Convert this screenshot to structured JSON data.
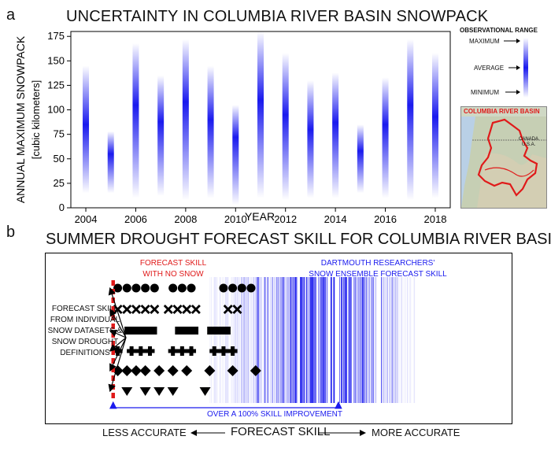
{
  "panel_a": {
    "letter": "a",
    "title": "UNCERTAINTY IN COLUMBIA RIVER BASIN SNOWPACK",
    "legend": {
      "title": "OBSERVATIONAL RANGE",
      "maximum": "MAXIMUM",
      "average": "AVERAGE",
      "minimum": "MINIMUM"
    },
    "map": {
      "title": "COLUMBIA RIVER BASIN",
      "canada": "CANADA",
      "usa": "U.S.A."
    }
  },
  "panel_b": {
    "letter": "b",
    "title": "SUMMER DROUGHT FORECAST SKILL FOR COLUMBIA RIVER BASIN",
    "no_snow_line1": "FORECAST SKILL",
    "no_snow_line2": "WITH NO SNOW",
    "ensemble_line1": "DARTMOUTH RESEARCHERS'",
    "ensemble_line2": "SNOW ENSEMBLE FORECAST SKILL",
    "datasets_lines": [
      "FORECAST SKILL",
      "FROM INDIVIDUAL",
      "SNOW DATASETS &",
      "SNOW DROUGHT",
      "DEFINITIONS"
    ],
    "improvement": "OVER A 100% SKILL IMPROVEMENT",
    "axis_left": "LESS ACCURATE",
    "axis_mid": "FORECAST SKILL",
    "axis_right": "MORE ACCURATE"
  },
  "colors": {
    "blue": "#1a1aee",
    "red": "#e01a1a",
    "black": "#000000"
  },
  "chart_data": [
    {
      "type": "bar",
      "title": "UNCERTAINTY IN COLUMBIA RIVER BASIN SNOWPACK",
      "xlabel": "YEAR",
      "ylabel": "ANNUAL MAXIMUM SNOWPACK",
      "ylabel2": "[cubic kilometers]",
      "xlim": [
        2003.4,
        2018.6
      ],
      "ylim": [
        0,
        180
      ],
      "yticks": [
        0,
        25,
        50,
        75,
        100,
        125,
        150,
        175
      ],
      "xticks": [
        2004,
        2006,
        2008,
        2010,
        2012,
        2014,
        2016,
        2018
      ],
      "series": [
        {
          "name": "OBSERVATIONAL RANGE",
          "x": [
            2004,
            2005,
            2006,
            2007,
            2008,
            2009,
            2010,
            2011,
            2012,
            2013,
            2014,
            2015,
            2016,
            2017,
            2018
          ],
          "min": [
            15,
            15,
            10,
            12,
            8,
            10,
            3,
            10,
            8,
            10,
            10,
            15,
            10,
            8,
            10
          ],
          "avg": [
            85,
            55,
            105,
            88,
            108,
            90,
            72,
            110,
            95,
            80,
            87,
            58,
            85,
            105,
            93
          ],
          "max": [
            145,
            78,
            168,
            135,
            172,
            145,
            105,
            180,
            158,
            130,
            138,
            85,
            133,
            172,
            158
          ]
        }
      ]
    },
    {
      "type": "scatter",
      "title": "SUMMER DROUGHT FORECAST SKILL FOR COLUMBIA RIVER BASIN",
      "xlabel": "FORECAST SKILL",
      "xlim": [
        0,
        100
      ],
      "no_snow_skill": 14,
      "ensemble_skill_peak": 63,
      "ensemble_range": [
        35,
        80
      ],
      "series": [
        {
          "marker": "circle",
          "x": [
            15,
            17,
            19,
            21,
            23,
            27,
            29,
            31,
            38,
            40,
            42,
            44
          ]
        },
        {
          "marker": "cross",
          "x": [
            15,
            17,
            19,
            21,
            23,
            26,
            28,
            30,
            32,
            39,
            41
          ]
        },
        {
          "marker": "square",
          "x": [
            18,
            20,
            22,
            29,
            31,
            36,
            38
          ]
        },
        {
          "marker": "plus",
          "x": [
            15,
            18,
            20,
            22,
            27,
            29,
            31,
            36,
            38,
            40
          ]
        },
        {
          "marker": "diamond",
          "x": [
            15,
            17,
            19,
            21,
            24,
            27,
            30,
            35,
            40,
            45
          ]
        },
        {
          "marker": "triangle",
          "x": [
            17,
            21,
            24,
            27,
            34
          ]
        }
      ]
    }
  ]
}
